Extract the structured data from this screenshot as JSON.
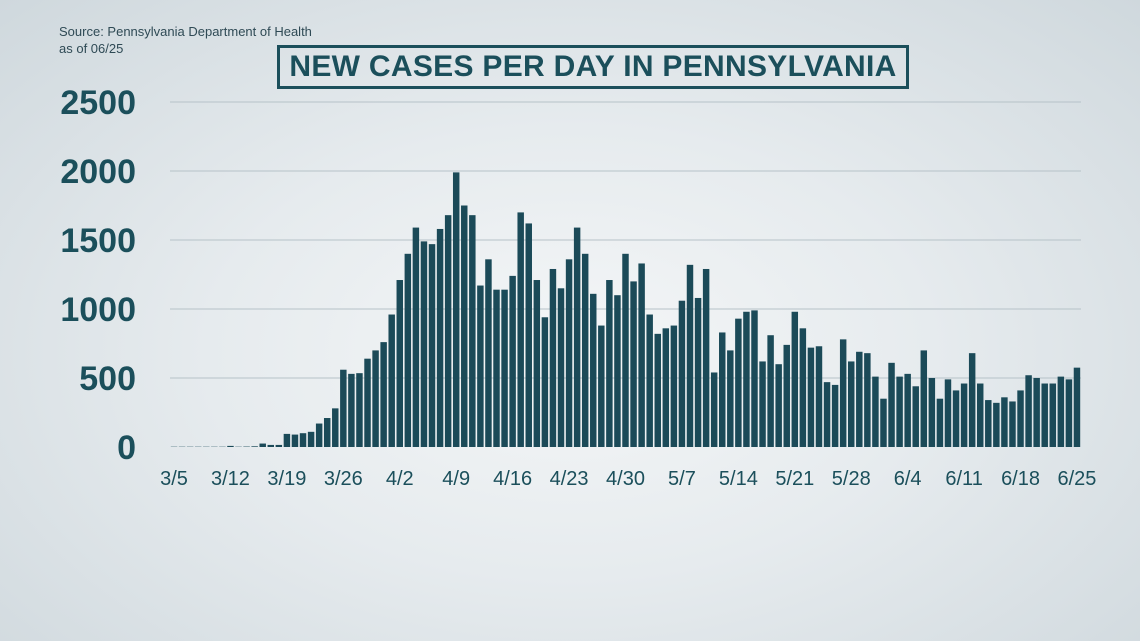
{
  "source": "Source: Pennsylvania Department of Health",
  "as_of": "as of 06/25",
  "chart_data": {
    "type": "bar",
    "title": "NEW CASES PER DAY IN PENNSYLVANIA",
    "xlabel": "",
    "ylabel": "",
    "ylim": [
      0,
      2500
    ],
    "yticks": [
      "0",
      "500",
      "1000",
      "1500",
      "2000",
      "2500"
    ],
    "xticks": [
      "3/5",
      "3/12",
      "3/19",
      "3/26",
      "4/2",
      "4/9",
      "4/16",
      "4/23",
      "4/30",
      "5/7",
      "5/14",
      "5/21",
      "5/28",
      "6/4",
      "6/11",
      "6/18",
      "6/25"
    ],
    "grid": true,
    "bar_color": "#1b4a58",
    "grid_color": "#b6c2c8",
    "text_color": "#1b4f5b",
    "categories": [
      "3/5",
      "3/6",
      "3/7",
      "3/8",
      "3/9",
      "3/10",
      "3/11",
      "3/12",
      "3/13",
      "3/14",
      "3/15",
      "3/16",
      "3/17",
      "3/18",
      "3/19",
      "3/20",
      "3/21",
      "3/22",
      "3/23",
      "3/24",
      "3/25",
      "3/26",
      "3/27",
      "3/28",
      "3/29",
      "3/30",
      "3/31",
      "4/1",
      "4/2",
      "4/3",
      "4/4",
      "4/5",
      "4/6",
      "4/7",
      "4/8",
      "4/9",
      "4/10",
      "4/11",
      "4/12",
      "4/13",
      "4/14",
      "4/15",
      "4/16",
      "4/17",
      "4/18",
      "4/19",
      "4/20",
      "4/21",
      "4/22",
      "4/23",
      "4/24",
      "4/25",
      "4/26",
      "4/27",
      "4/28",
      "4/29",
      "4/30",
      "5/1",
      "5/2",
      "5/3",
      "5/4",
      "5/5",
      "5/6",
      "5/7",
      "5/8",
      "5/9",
      "5/10",
      "5/11",
      "5/12",
      "5/13",
      "5/14",
      "5/15",
      "5/16",
      "5/17",
      "5/18",
      "5/19",
      "5/20",
      "5/21",
      "5/22",
      "5/23",
      "5/24",
      "5/25",
      "5/26",
      "5/27",
      "5/28",
      "5/29",
      "5/30",
      "5/31",
      "6/1",
      "6/2",
      "6/3",
      "6/4",
      "6/5",
      "6/6",
      "6/7",
      "6/8",
      "6/9",
      "6/10",
      "6/11",
      "6/12",
      "6/13",
      "6/14",
      "6/15",
      "6/16",
      "6/17",
      "6/18",
      "6/19",
      "6/20",
      "6/21",
      "6/22",
      "6/23",
      "6/24",
      "6/25"
    ],
    "values": [
      2,
      2,
      2,
      2,
      2,
      2,
      2,
      8,
      2,
      3,
      5,
      25,
      15,
      15,
      95,
      90,
      100,
      110,
      170,
      210,
      280,
      560,
      530,
      535,
      640,
      700,
      760,
      960,
      1210,
      1400,
      1590,
      1490,
      1470,
      1580,
      1680,
      1990,
      1750,
      1680,
      1170,
      1360,
      1140,
      1140,
      1240,
      1700,
      1620,
      1210,
      940,
      1290,
      1150,
      1360,
      1590,
      1400,
      1110,
      880,
      1210,
      1100,
      1400,
      1200,
      1330,
      960,
      820,
      860,
      880,
      1060,
      1320,
      1080,
      1290,
      540,
      830,
      700,
      930,
      980,
      990,
      620,
      810,
      600,
      740,
      980,
      860,
      720,
      730,
      470,
      450,
      780,
      620,
      690,
      680,
      510,
      350,
      610,
      510,
      530,
      440,
      700,
      500,
      350,
      490,
      410,
      460,
      680,
      460,
      340,
      320,
      360,
      330,
      410,
      520,
      500,
      460,
      460,
      510,
      490,
      575
    ]
  }
}
